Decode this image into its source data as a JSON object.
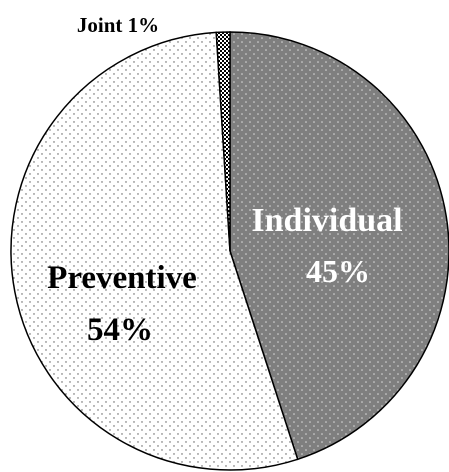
{
  "chart_data": {
    "type": "pie",
    "slices": [
      {
        "name": "Individual",
        "value": 45,
        "label_line1": "Individual",
        "label_line2": "45%",
        "color": "#7f7f7f",
        "pattern": "dots-light"
      },
      {
        "name": "Preventive",
        "value": 54,
        "label_line1": "Preventive",
        "label_line2": "54%",
        "color": "#ffffff",
        "pattern": "dots-dark"
      },
      {
        "name": "Joint",
        "value": 1,
        "label_line1": "Joint 1%",
        "label_line2": "",
        "color": "#000000",
        "pattern": "checker"
      }
    ],
    "start_angle_deg": 0,
    "direction": "clockwise"
  }
}
